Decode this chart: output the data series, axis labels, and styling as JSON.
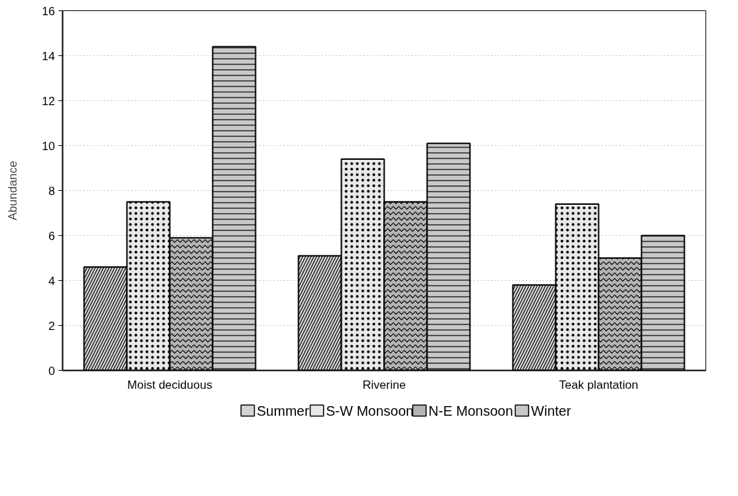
{
  "chart_data": {
    "type": "bar",
    "ylabel": "Abundance",
    "categories": [
      "Moist deciduous",
      "Riverine",
      "Teak plantation"
    ],
    "series": [
      {
        "name": "Summer",
        "color": "#d4d4d4",
        "values": [
          4.6,
          5.1,
          3.8
        ]
      },
      {
        "name": "S-W Monsoon",
        "color": "#e8e8e8",
        "values": [
          7.5,
          9.4,
          7.4
        ]
      },
      {
        "name": "N-E Monsoon",
        "color": "#b4b4b4",
        "values": [
          5.9,
          7.5,
          5.0
        ]
      },
      {
        "name": "Winter",
        "color": "#c8c8c8",
        "values": [
          14.4,
          10.1,
          6.0
        ]
      }
    ],
    "ylim": [
      0,
      16
    ],
    "yticks": [
      0,
      2,
      4,
      6,
      8,
      10,
      12,
      14,
      16
    ],
    "grid": "y",
    "legend": "bottom"
  }
}
